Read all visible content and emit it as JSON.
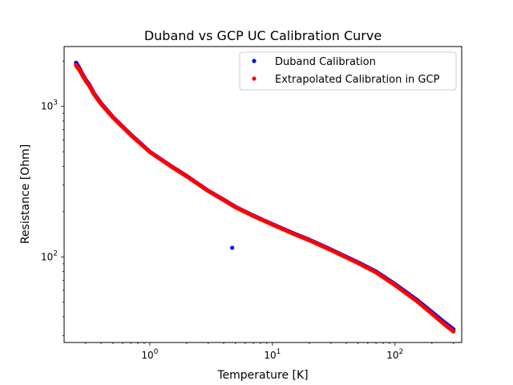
{
  "chart_data": {
    "type": "scatter",
    "title": "Duband vs GCP UC Calibration Curve",
    "xlabel": "Temperature [K]",
    "ylabel": "Resistance [Ohm]",
    "xscale": "log",
    "yscale": "log",
    "xlim": [
      0.2,
      350
    ],
    "ylim": [
      27,
      2500
    ],
    "x_ticks": [
      {
        "value": 1,
        "base": "10",
        "exp": "0"
      },
      {
        "value": 10,
        "base": "10",
        "exp": "1"
      },
      {
        "value": 100,
        "base": "10",
        "exp": "2"
      }
    ],
    "y_ticks": [
      {
        "value": 100,
        "base": "10",
        "exp": "2"
      },
      {
        "value": 1000,
        "base": "10",
        "exp": "3"
      }
    ],
    "grid": false,
    "legend_position": "top-right",
    "series": [
      {
        "name": "Duband Calibration",
        "color": "#0000ff",
        "x": [
          0.25,
          0.26,
          0.27,
          0.28,
          0.3,
          0.32,
          0.35,
          0.4,
          0.5,
          0.7,
          1.0,
          1.5,
          2.0,
          3.0,
          4.0,
          5.0,
          7.0,
          10.0,
          15.0,
          20.0,
          30.0,
          50.0,
          70.0,
          100.0,
          150.0,
          200.0,
          250.0,
          300.0,
          4.7
        ],
        "y": [
          1950,
          1850,
          1750,
          1650,
          1500,
          1400,
          1220,
          1050,
          850,
          650,
          500,
          400,
          345,
          275,
          240,
          215,
          188,
          165,
          143,
          130,
          112,
          92,
          80,
          66,
          52,
          43,
          37,
          33,
          115
        ]
      },
      {
        "name": "Extrapolated Calibration in GCP",
        "color": "#ff0000",
        "x": [
          0.25,
          0.26,
          0.27,
          0.28,
          0.3,
          0.32,
          0.35,
          0.4,
          0.5,
          0.7,
          1.0,
          1.5,
          2.0,
          3.0,
          4.0,
          5.0,
          7.0,
          10.0,
          15.0,
          20.0,
          30.0,
          50.0,
          70.0,
          100.0,
          150.0,
          200.0,
          250.0,
          300.0
        ],
        "y": [
          1880,
          1800,
          1720,
          1630,
          1480,
          1380,
          1210,
          1040,
          845,
          645,
          498,
          398,
          343,
          274,
          239,
          214,
          187,
          164,
          142,
          129,
          111,
          91,
          79,
          65,
          51,
          42,
          36,
          32
        ]
      }
    ]
  }
}
